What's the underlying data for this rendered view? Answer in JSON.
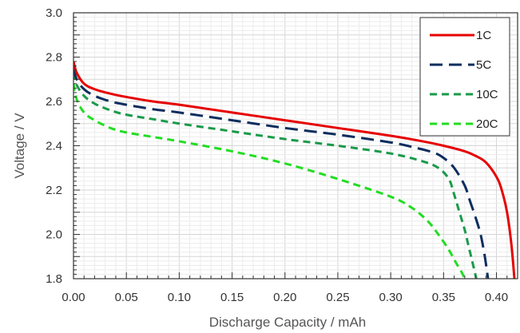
{
  "chart_data": {
    "type": "line",
    "title": "",
    "xlabel": "Discharge Capacity / mAh",
    "ylabel": "Voltage / V",
    "xlim": [
      0.0,
      0.42
    ],
    "ylim": [
      1.8,
      3.0
    ],
    "x_ticks": [
      "0.00",
      "0.05",
      "0.10",
      "0.15",
      "0.20",
      "0.25",
      "0.30",
      "0.35",
      "0.40"
    ],
    "y_ticks": [
      "1.8",
      "2.0",
      "2.2",
      "2.4",
      "2.6",
      "2.8",
      "3.0"
    ],
    "grid": true,
    "legend": "top-right",
    "series": [
      {
        "name": "1C",
        "color": "#e60000",
        "dash": "solid",
        "x": [
          0.0,
          0.003,
          0.01,
          0.02,
          0.035,
          0.05,
          0.075,
          0.1,
          0.15,
          0.2,
          0.25,
          0.3,
          0.33,
          0.35,
          0.37,
          0.38,
          0.39,
          0.4,
          0.405,
          0.41,
          0.414,
          0.417
        ],
        "y": [
          2.78,
          2.73,
          2.68,
          2.655,
          2.635,
          2.62,
          2.6,
          2.585,
          2.55,
          2.515,
          2.48,
          2.445,
          2.42,
          2.4,
          2.375,
          2.355,
          2.325,
          2.26,
          2.2,
          2.1,
          1.96,
          1.8
        ]
      },
      {
        "name": "5C",
        "color": "#0d2d5e",
        "dash": "long-dash",
        "x": [
          0.0,
          0.003,
          0.01,
          0.02,
          0.035,
          0.05,
          0.075,
          0.1,
          0.15,
          0.2,
          0.25,
          0.3,
          0.32,
          0.34,
          0.35,
          0.36,
          0.37,
          0.375,
          0.38,
          0.385,
          0.389,
          0.392
        ],
        "y": [
          2.75,
          2.7,
          2.655,
          2.625,
          2.6,
          2.585,
          2.565,
          2.55,
          2.515,
          2.48,
          2.45,
          2.415,
          2.395,
          2.37,
          2.345,
          2.3,
          2.22,
          2.15,
          2.08,
          2.0,
          1.9,
          1.8
        ]
      },
      {
        "name": "10C",
        "color": "#1a9a4a",
        "dash": "dash",
        "x": [
          0.0,
          0.003,
          0.01,
          0.02,
          0.035,
          0.05,
          0.075,
          0.1,
          0.15,
          0.2,
          0.25,
          0.3,
          0.33,
          0.345,
          0.355,
          0.36,
          0.365,
          0.37,
          0.373,
          0.377,
          0.381
        ],
        "y": [
          2.73,
          2.675,
          2.625,
          2.59,
          2.56,
          2.54,
          2.52,
          2.5,
          2.465,
          2.43,
          2.4,
          2.365,
          2.33,
          2.3,
          2.25,
          2.18,
          2.1,
          2.02,
          1.96,
          1.88,
          1.8
        ]
      },
      {
        "name": "20C",
        "color": "#22dd22",
        "dash": "dash",
        "x": [
          0.0,
          0.003,
          0.01,
          0.02,
          0.035,
          0.05,
          0.075,
          0.1,
          0.15,
          0.2,
          0.25,
          0.3,
          0.32,
          0.335,
          0.345,
          0.355,
          0.362,
          0.367,
          0.37
        ],
        "y": [
          2.68,
          2.61,
          2.55,
          2.515,
          2.48,
          2.46,
          2.44,
          2.42,
          2.375,
          2.32,
          2.25,
          2.17,
          2.12,
          2.06,
          2.0,
          1.93,
          1.87,
          1.83,
          1.8
        ]
      }
    ]
  }
}
